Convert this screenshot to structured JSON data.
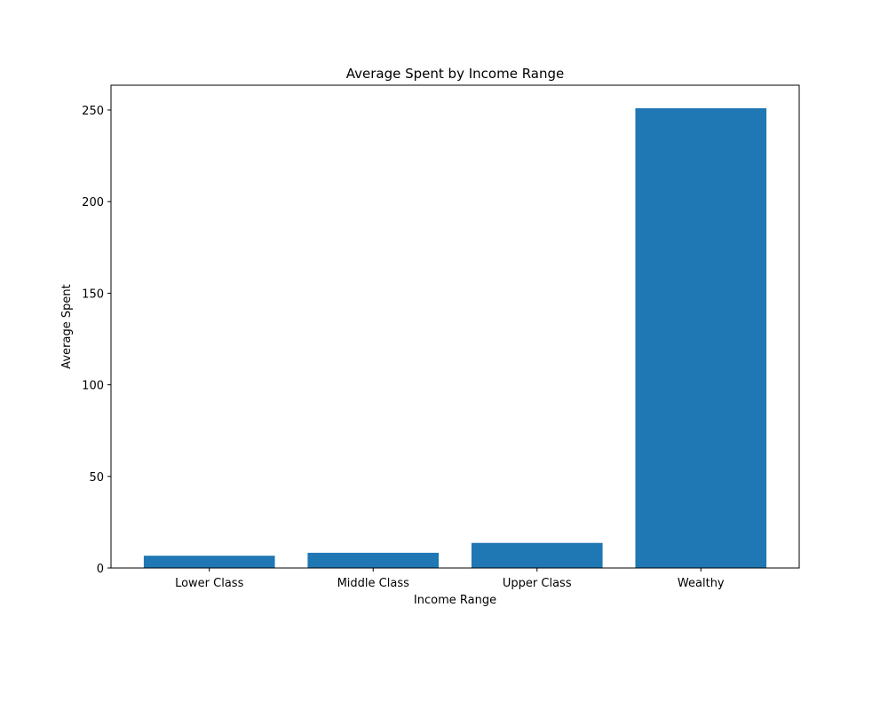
{
  "chart_data": {
    "type": "bar",
    "title": "Average Spent by Income Range",
    "xlabel": "Income Range",
    "ylabel": "Average Spent",
    "categories": [
      "Lower Class",
      "Middle Class",
      "Upper Class",
      "Wealthy"
    ],
    "values": [
      6.7,
      8.3,
      13.7,
      251.0
    ],
    "ylim": [
      0,
      263.55
    ],
    "yticks": [
      0,
      50,
      100,
      150,
      200,
      250
    ],
    "ytick_labels": [
      "0",
      "50",
      "100",
      "150",
      "200",
      "250"
    ],
    "bar_color": "#1f77b4",
    "grid": false,
    "legend": "none"
  }
}
